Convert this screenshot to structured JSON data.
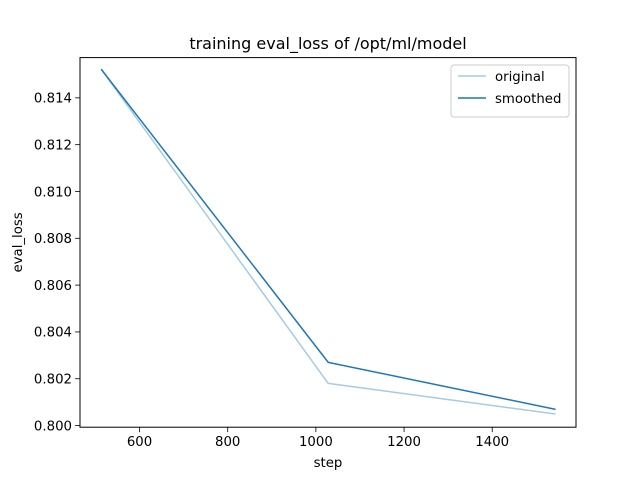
{
  "chart_data": {
    "type": "line",
    "title": "training eval_loss of /opt/ml/model",
    "xlabel": "step",
    "ylabel": "eval_loss",
    "xlim": [
      465,
      1590
    ],
    "ylim": [
      0.79993,
      0.81572
    ],
    "xticks": [
      600,
      800,
      1000,
      1200,
      1400
    ],
    "yticks": [
      0.8,
      0.802,
      0.804,
      0.806,
      0.808,
      0.81,
      0.812,
      0.814
    ],
    "grid": false,
    "legend_position": "top-right",
    "series": [
      {
        "name": "original",
        "color": "#a6cbe3",
        "x": [
          514,
          1028,
          1542
        ],
        "y": [
          0.8152,
          0.8018,
          0.8005
        ]
      },
      {
        "name": "smoothed",
        "color": "#1f77b4",
        "x": [
          514,
          1028,
          1542
        ],
        "y": [
          0.8152,
          0.8027,
          0.8007
        ]
      }
    ]
  }
}
